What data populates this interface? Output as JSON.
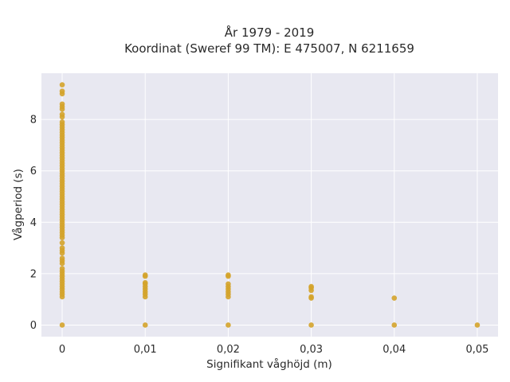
{
  "chart_data": {
    "type": "scatter",
    "title_line1": "År 1979 - 2019",
    "title_line2": "Koordinat (Sweref 99 TM): E 475007, N 6211659",
    "xlabel": "Signifikant våghöjd (m)",
    "ylabel": "Vågperiod (s)",
    "xlim": [
      -0.0025,
      0.0525
    ],
    "ylim": [
      -0.45,
      9.8
    ],
    "xticks": [
      0,
      0.01,
      0.02,
      0.03,
      0.04,
      0.05
    ],
    "xtick_labels": [
      "0",
      "0,01",
      "0,02",
      "0,03",
      "0,04",
      "0,05"
    ],
    "yticks": [
      0,
      2,
      4,
      6,
      8
    ],
    "ytick_labels": [
      "0",
      "2",
      "4",
      "6",
      "8"
    ],
    "grid": true,
    "colors": {
      "background": "#e8e8f1",
      "grid": "#ffffff",
      "point": "#d4a32a"
    },
    "series": [
      {
        "points": [
          [
            0,
            0
          ],
          [
            0,
            1.1
          ],
          [
            0,
            1.2
          ],
          [
            0,
            1.3
          ],
          [
            0,
            1.4
          ],
          [
            0,
            1.5
          ],
          [
            0,
            1.6
          ],
          [
            0,
            1.7
          ],
          [
            0,
            1.8
          ],
          [
            0,
            1.9
          ],
          [
            0,
            2.0
          ],
          [
            0,
            2.1
          ],
          [
            0,
            2.2
          ],
          [
            0,
            2.4
          ],
          [
            0,
            2.5
          ],
          [
            0,
            2.6
          ],
          [
            0,
            2.8
          ],
          [
            0,
            2.9
          ],
          [
            0,
            3.0
          ],
          [
            0,
            3.2
          ],
          [
            0,
            3.4
          ],
          [
            0,
            3.5
          ],
          [
            0,
            3.6
          ],
          [
            0,
            3.7
          ],
          [
            0,
            3.8
          ],
          [
            0,
            3.9
          ],
          [
            0,
            4.0
          ],
          [
            0,
            4.1
          ],
          [
            0,
            4.2
          ],
          [
            0,
            4.3
          ],
          [
            0,
            4.4
          ],
          [
            0,
            4.5
          ],
          [
            0,
            4.6
          ],
          [
            0,
            4.7
          ],
          [
            0,
            4.8
          ],
          [
            0,
            4.9
          ],
          [
            0,
            5.0
          ],
          [
            0,
            5.1
          ],
          [
            0,
            5.2
          ],
          [
            0,
            5.3
          ],
          [
            0,
            5.4
          ],
          [
            0,
            5.5
          ],
          [
            0,
            5.6
          ],
          [
            0,
            5.7
          ],
          [
            0,
            5.8
          ],
          [
            0,
            5.9
          ],
          [
            0,
            6.0
          ],
          [
            0,
            6.1
          ],
          [
            0,
            6.2
          ],
          [
            0,
            6.3
          ],
          [
            0,
            6.4
          ],
          [
            0,
            6.5
          ],
          [
            0,
            6.6
          ],
          [
            0,
            6.7
          ],
          [
            0,
            6.8
          ],
          [
            0,
            6.9
          ],
          [
            0,
            7.0
          ],
          [
            0,
            7.1
          ],
          [
            0,
            7.2
          ],
          [
            0,
            7.3
          ],
          [
            0,
            7.4
          ],
          [
            0,
            7.5
          ],
          [
            0,
            7.6
          ],
          [
            0,
            7.7
          ],
          [
            0,
            7.8
          ],
          [
            0,
            7.9
          ],
          [
            0,
            8.1
          ],
          [
            0,
            8.2
          ],
          [
            0,
            8.4
          ],
          [
            0,
            8.5
          ],
          [
            0,
            8.6
          ],
          [
            0,
            9.0
          ],
          [
            0,
            9.1
          ],
          [
            0,
            9.35
          ],
          [
            0.01,
            0
          ],
          [
            0.01,
            1.1
          ],
          [
            0.01,
            1.2
          ],
          [
            0.01,
            1.3
          ],
          [
            0.01,
            1.4
          ],
          [
            0.01,
            1.5
          ],
          [
            0.01,
            1.6
          ],
          [
            0.01,
            1.65
          ],
          [
            0.01,
            1.9
          ],
          [
            0.01,
            1.95
          ],
          [
            0.02,
            0
          ],
          [
            0.02,
            1.1
          ],
          [
            0.02,
            1.2
          ],
          [
            0.02,
            1.3
          ],
          [
            0.02,
            1.4
          ],
          [
            0.02,
            1.5
          ],
          [
            0.02,
            1.6
          ],
          [
            0.02,
            1.9
          ],
          [
            0.02,
            1.95
          ],
          [
            0.03,
            0
          ],
          [
            0.03,
            1.05
          ],
          [
            0.03,
            1.1
          ],
          [
            0.03,
            1.35
          ],
          [
            0.03,
            1.45
          ],
          [
            0.03,
            1.5
          ],
          [
            0.04,
            0
          ],
          [
            0.04,
            1.05
          ],
          [
            0.05,
            0
          ]
        ]
      }
    ]
  }
}
